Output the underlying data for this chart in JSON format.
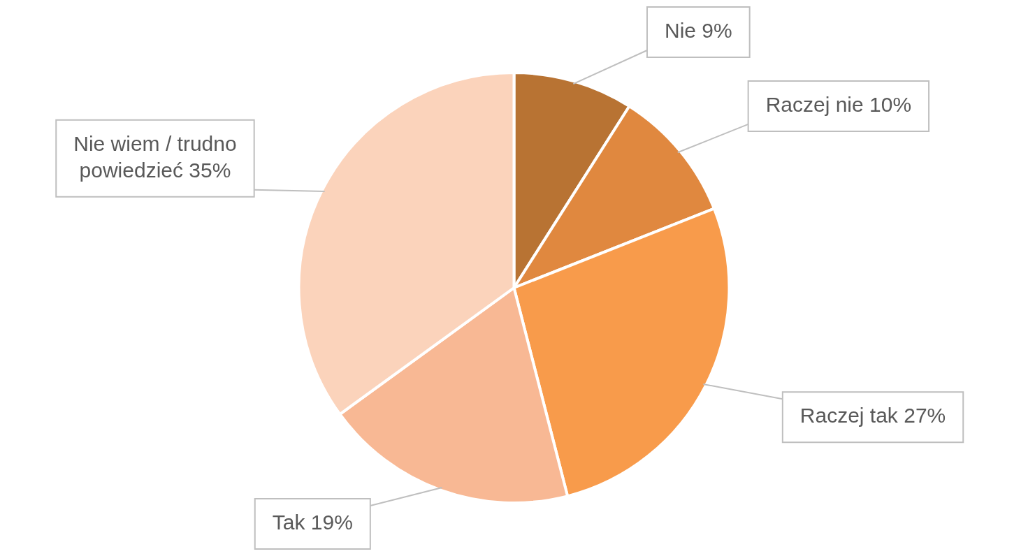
{
  "chart_data": {
    "type": "pie",
    "categories": [
      "Nie",
      "Raczej nie",
      "Raczej tak",
      "Tak",
      "Nie wiem / trudno powiedzieć"
    ],
    "values": [
      9,
      10,
      27,
      19,
      35
    ],
    "colors": [
      "#b87333",
      "#e0883f",
      "#f89b4b",
      "#f8b894",
      "#fbd3bb"
    ],
    "value_labels": [
      "9%",
      "10%",
      "27%",
      "19%",
      "35%"
    ],
    "legend": false
  }
}
